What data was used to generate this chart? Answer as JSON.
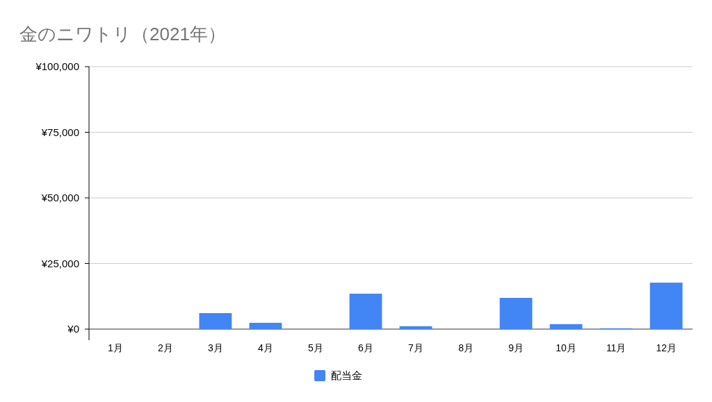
{
  "chart_data": {
    "type": "bar",
    "title": "金のニワトリ（2021年）",
    "categories": [
      "1月",
      "2月",
      "3月",
      "4月",
      "5月",
      "6月",
      "7月",
      "8月",
      "9月",
      "10月",
      "11月",
      "12月"
    ],
    "series": [
      {
        "name": "配当金",
        "color": "#4285f4",
        "values": [
          0,
          0,
          6100,
          2400,
          0,
          13500,
          1100,
          0,
          11900,
          1900,
          300,
          17700
        ]
      }
    ],
    "ylim": [
      0,
      100000
    ],
    "yticks": [
      {
        "value": 0,
        "label": "¥0"
      },
      {
        "value": 25000,
        "label": "¥25,000"
      },
      {
        "value": 50000,
        "label": "¥50,000"
      },
      {
        "value": 75000,
        "label": "¥75,000"
      },
      {
        "value": 100000,
        "label": "¥100,000"
      }
    ],
    "grid": "y",
    "legend": "bottom"
  }
}
